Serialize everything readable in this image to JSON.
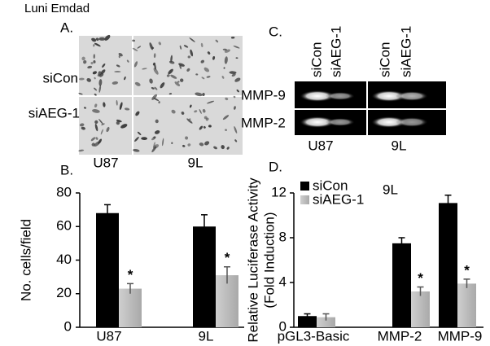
{
  "author": "Luni Emdad",
  "panel_a": {
    "label": "A.",
    "rows": [
      "siCon",
      "siAEG-1"
    ],
    "columns": [
      "U87",
      "9L"
    ]
  },
  "panel_c": {
    "label": "C.",
    "lanes": [
      "siCon",
      "siAEG-1",
      "siCon",
      "siAEG-1"
    ],
    "rows": [
      "MMP-9",
      "MMP-2"
    ],
    "columns": [
      "U87",
      "9L"
    ]
  },
  "chart_data": [
    {
      "type": "bar",
      "title": "B.",
      "ylabel": [
        "No. cells/field"
      ],
      "categories": [
        "U87",
        "9L"
      ],
      "series": [
        {
          "color": "#000000",
          "values": [
            68,
            60
          ],
          "errors": [
            5,
            7
          ]
        },
        {
          "color": "#bdbdbd",
          "values": [
            23,
            31
          ],
          "errors": [
            3,
            5
          ],
          "significant": [
            true,
            true
          ]
        }
      ],
      "significance_marker": "*",
      "ylim": [
        0,
        80
      ],
      "yticks": [
        0,
        20,
        40,
        60,
        80
      ],
      "grid": false
    },
    {
      "type": "bar",
      "title": "D.",
      "subtitle": "9L",
      "ylabel": [
        "Relative Luciferase Activity",
        "(Fold Induction)"
      ],
      "categories": [
        "pGL3-Basic",
        "MMP-2",
        "MMP-9"
      ],
      "series": [
        {
          "name": "siCon",
          "color": "#000000",
          "values": [
            1,
            7.5,
            11.1
          ],
          "errors": [
            0.2,
            0.5,
            0.7
          ]
        },
        {
          "name": "siAEG-1",
          "color": "#bdbdbd",
          "values": [
            0.9,
            3.2,
            3.9
          ],
          "errors": [
            0.3,
            0.4,
            0.4
          ],
          "significant": [
            false,
            true,
            true
          ]
        }
      ],
      "significance_marker": "*",
      "ylim": [
        0,
        12
      ],
      "yticks": [
        0,
        4,
        8,
        12
      ],
      "grid": false,
      "legend": "upper-left"
    }
  ]
}
